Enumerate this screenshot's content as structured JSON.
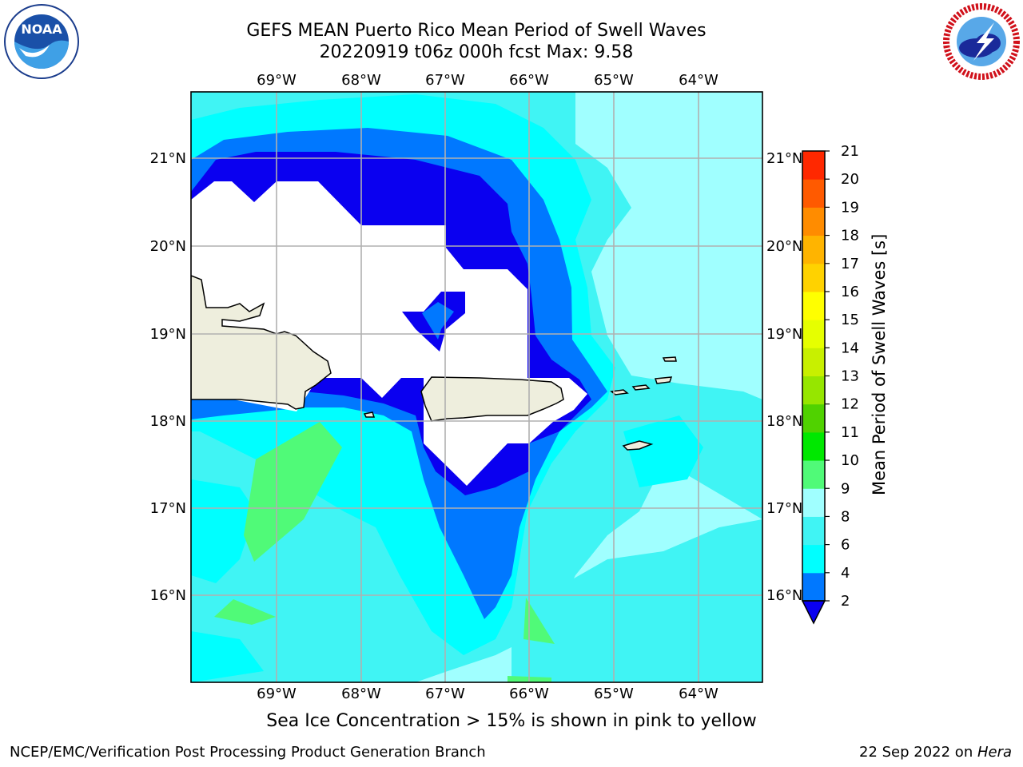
{
  "header": {
    "title_line1": "GEFS MEAN Puerto Rico Mean Period of Swell Waves",
    "title_line2": "20220919 t06z 000h fcst   Max: 9.58"
  },
  "logos": {
    "left": {
      "icon": "noaa-logo-icon",
      "text": "NOAA",
      "ring_text": "NATIONAL OCEANIC AND ATMOSPHERIC ADMINISTRATION · U.S. DEPARTMENT OF COMMERCE"
    },
    "right": {
      "icon": "nws-logo-icon",
      "ring_text": "NATIONAL WEATHER SERVICE"
    }
  },
  "map": {
    "lon_labels": [
      "69°W",
      "68°W",
      "67°W",
      "66°W",
      "65°W",
      "64°W"
    ],
    "lat_labels": [
      "21°N",
      "20°N",
      "19°N",
      "18°N",
      "17°N",
      "16°N"
    ],
    "colors": {
      "lt2": "#0a00f0",
      "c2_4": "#0078ff",
      "c4_6": "#00ffff",
      "c6_8": "#40f4f4",
      "c8_9": "#a0ffff",
      "c9_10": "#50fa78",
      "land": "#eeeedd",
      "nodata": "#ffffff",
      "grid": "#b0b0b0"
    }
  },
  "colorbar": {
    "label": "Mean Period of Swell Waves [s]",
    "ticks": [
      "2",
      "4",
      "6",
      "8",
      "9",
      "10",
      "11",
      "12",
      "13",
      "14",
      "15",
      "16",
      "17",
      "18",
      "19",
      "20",
      "21"
    ],
    "colors": [
      "#0078ff",
      "#00ffff",
      "#40f4f4",
      "#a0ffff",
      "#50fa78",
      "#00e800",
      "#50d200",
      "#96e600",
      "#c8f000",
      "#e6ff00",
      "#ffff00",
      "#ffd200",
      "#ffb400",
      "#ff8c00",
      "#ff5a00",
      "#ff2800",
      "#ff0000"
    ],
    "under_color": "#0a00f0"
  },
  "note": "Sea Ice Concentration > 15% is shown in pink to yellow",
  "footer": {
    "left": "NCEP/EMC/Verification Post Processing Product Generation Branch",
    "right_date": "22 Sep 2022 on ",
    "right_host": "Hera"
  }
}
